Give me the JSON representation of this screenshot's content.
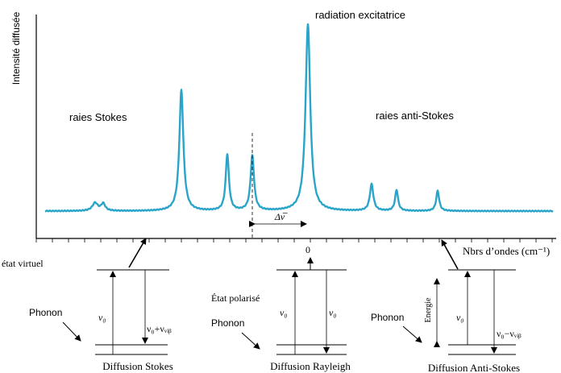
{
  "spectrum": {
    "y_axis_label": "Intensité diffusée",
    "x_axis_label": "Nbrs d’ondes (cm⁻¹)",
    "zero_label": "0",
    "delta_label": "Δν̅",
    "label_stokes": "raies Stokes",
    "label_anti_stokes": "raies anti-Stokes",
    "label_excitation": "radiation excitatrice",
    "line_color": "#2aa5c9"
  },
  "stokes": {
    "virtual_state_label": "état virtuel",
    "phonon_label": "Phonon",
    "nu0_label": "ν₀",
    "shift_label": "ν₀+νᵥᵢᵦ",
    "title": "Diffusion Stokes"
  },
  "rayleigh": {
    "polarized_state_label": "État polarisé",
    "phonon_label": "Phonon",
    "nu0_left_label": "ν₀",
    "nu0_right_label": "ν₀",
    "title": "Diffusion Rayleigh"
  },
  "anti_stokes": {
    "phonon_label": "Phonon",
    "energy_label": "Energie",
    "nu0_label": "ν₀",
    "shift_label": "ν₀−νᵥᵢᵦ",
    "title": "Diffusion Anti-Stokes"
  }
}
